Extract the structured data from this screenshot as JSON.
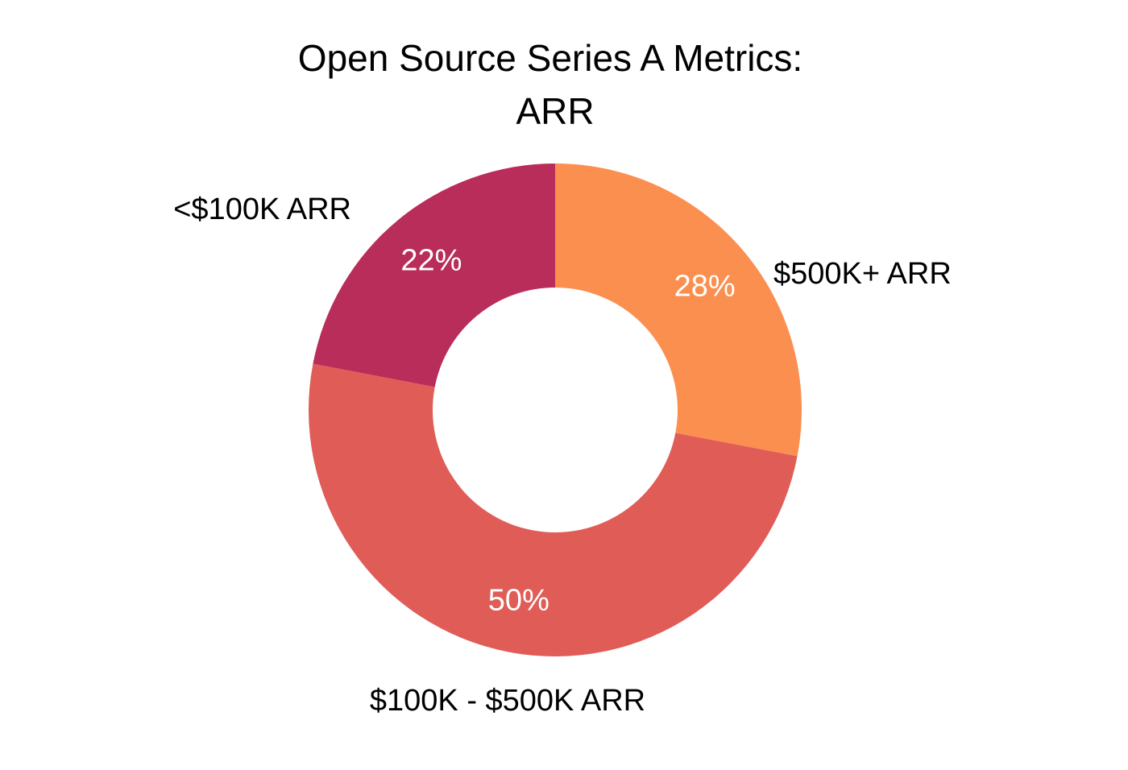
{
  "chart_data": {
    "type": "pie",
    "style": "donut",
    "title_lines": [
      "Open Source Series A Metrics:",
      "ARR"
    ],
    "slices": [
      {
        "label": "$500K+ ARR",
        "value": 28,
        "value_label": "28%",
        "color": "#FB8F4F"
      },
      {
        "label": "$100K - $500K ARR",
        "value": 50,
        "value_label": "50%",
        "color": "#E05D57"
      },
      {
        "label": "<$100K ARR",
        "value": 22,
        "value_label": "22%",
        "color": "#B82D5A"
      }
    ],
    "unit": "%",
    "start_angle_deg": 0,
    "direction": "clockwise"
  }
}
